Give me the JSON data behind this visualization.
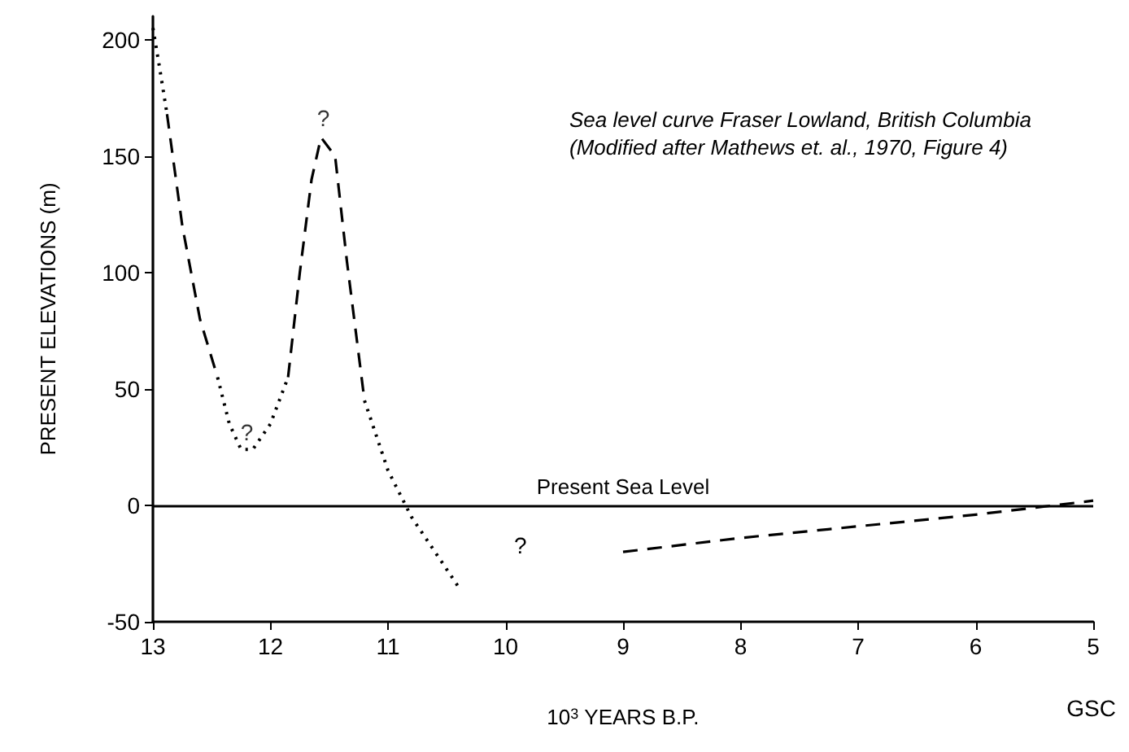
{
  "chart_data": {
    "type": "line",
    "title": "Sea level curve Fraser Lowland, British Columbia",
    "subtitle": "(Modified after Mathews et. al., 1970, Figure 4)",
    "xlabel": "10$^{3}$ YEARS B.P.",
    "ylabel": "PRESENT ELEVATIONS (m)",
    "xlim": [
      13,
      5
    ],
    "xticks": [
      13,
      12,
      11,
      10,
      9,
      8,
      7,
      6,
      5
    ],
    "ylim": [
      -50,
      210
    ],
    "yticks": [
      -50,
      0,
      50,
      100,
      150,
      200
    ],
    "grid": false,
    "marker": "none",
    "series": [
      {
        "color": "#000000",
        "line_style": "dotted",
        "x": [
          13,
          12.95,
          12.88,
          12.6,
          12.45,
          12.35,
          12.25,
          12.15,
          12,
          11.85,
          11.5,
          11.2,
          11,
          10.8,
          10.6,
          10.4
        ],
        "values": [
          205,
          190,
          168,
          null,
          55,
          35,
          24,
          24,
          35,
          55,
          null,
          45,
          15,
          -5,
          -20,
          -35
        ]
      },
      {
        "color": "#000000",
        "line_style": "dashed",
        "x": [
          12.88,
          12.75,
          12.6,
          12.45,
          12.2,
          11.85,
          11.75,
          11.65,
          11.57,
          11.45,
          11.35,
          11.2,
          10,
          9,
          8,
          7,
          6,
          5
        ],
        "values": [
          168,
          120,
          80,
          55,
          null,
          55,
          100,
          140,
          158,
          150,
          105,
          45,
          null,
          -20,
          -14,
          -9,
          -4,
          2
        ]
      }
    ],
    "ref_lines": [
      {
        "axis": "y",
        "value": 0,
        "label": "Present Sea Level",
        "color": "#000000",
        "line_style": "solid"
      }
    ],
    "annotations": [
      {
        "text": "?",
        "x": 12.2,
        "y": 25
      },
      {
        "text": "?",
        "x": 11.55,
        "y": 160
      },
      "?",
      "GSC"
    ]
  }
}
